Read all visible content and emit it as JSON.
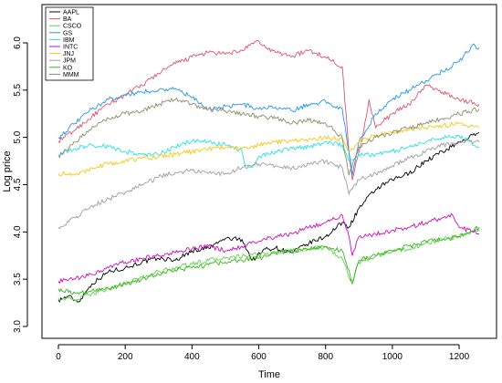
{
  "chart_data": {
    "type": "line",
    "title": "",
    "xlabel": "Time",
    "ylabel": "Log price",
    "xlim": [
      0,
      1260
    ],
    "ylim": [
      3.0,
      6.1
    ],
    "x_ticks": [
      0,
      200,
      400,
      600,
      800,
      1000,
      1200
    ],
    "y_ticks": [
      3.0,
      3.5,
      4.0,
      4.5,
      5.0,
      5.5,
      6.0
    ],
    "grid": false,
    "legend_position": "top-left",
    "series": [
      {
        "name": "AAPL",
        "color": "#000000",
        "x": [
          0,
          30,
          60,
          100,
          150,
          200,
          250,
          300,
          350,
          400,
          450,
          500,
          550,
          580,
          620,
          650,
          700,
          750,
          800,
          850,
          870,
          900,
          950,
          1000,
          1050,
          1100,
          1150,
          1200,
          1260
        ],
        "y": [
          3.28,
          3.32,
          3.26,
          3.45,
          3.58,
          3.62,
          3.68,
          3.72,
          3.7,
          3.8,
          3.83,
          3.93,
          3.92,
          3.7,
          3.82,
          3.83,
          3.78,
          3.88,
          3.95,
          4.1,
          4.05,
          4.25,
          4.45,
          4.55,
          4.62,
          4.75,
          4.85,
          4.95,
          5.05
        ]
      },
      {
        "name": "BA",
        "color": "#df536b",
        "x": [
          0,
          50,
          100,
          150,
          200,
          250,
          300,
          350,
          400,
          450,
          500,
          550,
          600,
          620,
          650,
          700,
          750,
          800,
          850,
          870,
          880,
          895,
          910,
          930,
          950,
          1000,
          1050,
          1100,
          1150,
          1200,
          1260
        ],
        "y": [
          4.96,
          5.08,
          5.22,
          5.35,
          5.45,
          5.55,
          5.68,
          5.78,
          5.85,
          5.9,
          5.88,
          5.92,
          6.02,
          5.95,
          5.9,
          5.86,
          5.92,
          5.85,
          5.75,
          4.85,
          4.55,
          4.78,
          5.0,
          5.4,
          5.1,
          5.25,
          5.35,
          5.55,
          5.48,
          5.4,
          5.35
        ]
      },
      {
        "name": "CSCO",
        "color": "#61d04f",
        "x": [
          0,
          50,
          100,
          150,
          200,
          250,
          300,
          350,
          400,
          450,
          500,
          550,
          600,
          650,
          700,
          750,
          800,
          850,
          870,
          880,
          900,
          950,
          1000,
          1050,
          1100,
          1150,
          1200,
          1260
        ],
        "y": [
          3.3,
          3.28,
          3.35,
          3.4,
          3.45,
          3.52,
          3.58,
          3.62,
          3.66,
          3.7,
          3.72,
          3.74,
          3.76,
          3.78,
          3.8,
          3.82,
          3.84,
          3.72,
          3.52,
          3.48,
          3.68,
          3.74,
          3.8,
          3.82,
          3.88,
          3.92,
          3.95,
          4.02
        ]
      },
      {
        "name": "GS",
        "color": "#2297e6",
        "x": [
          0,
          50,
          100,
          150,
          200,
          250,
          300,
          350,
          400,
          450,
          500,
          550,
          600,
          650,
          700,
          750,
          800,
          850,
          870,
          880,
          900,
          950,
          1000,
          1050,
          1100,
          1150,
          1200,
          1240,
          1260
        ],
        "y": [
          5.0,
          5.15,
          5.3,
          5.4,
          5.45,
          5.48,
          5.5,
          5.52,
          5.42,
          5.3,
          5.33,
          5.35,
          5.3,
          5.32,
          5.28,
          5.35,
          5.38,
          5.3,
          4.85,
          4.6,
          4.95,
          5.25,
          5.4,
          5.5,
          5.6,
          5.7,
          5.8,
          5.98,
          5.95
        ]
      },
      {
        "name": "IBM",
        "color": "#28e2e5",
        "x": [
          0,
          50,
          100,
          150,
          200,
          250,
          300,
          350,
          400,
          450,
          500,
          550,
          560,
          580,
          600,
          650,
          700,
          750,
          800,
          850,
          870,
          900,
          950,
          1000,
          1050,
          1100,
          1150,
          1200,
          1260
        ],
        "y": [
          4.82,
          4.88,
          4.92,
          4.9,
          4.85,
          4.82,
          4.82,
          4.9,
          4.96,
          4.95,
          4.92,
          4.85,
          4.7,
          4.68,
          4.8,
          4.85,
          4.88,
          4.9,
          4.95,
          4.92,
          4.75,
          4.82,
          4.82,
          4.85,
          4.9,
          4.95,
          5.0,
          5.02,
          4.9
        ]
      },
      {
        "name": "INTC",
        "color": "#cd0bbc",
        "x": [
          0,
          50,
          100,
          150,
          200,
          250,
          300,
          350,
          400,
          450,
          500,
          550,
          600,
          650,
          700,
          750,
          800,
          850,
          870,
          880,
          900,
          950,
          1000,
          1050,
          1100,
          1150,
          1180,
          1200,
          1260
        ],
        "y": [
          3.48,
          3.5,
          3.55,
          3.62,
          3.68,
          3.72,
          3.75,
          3.78,
          3.82,
          3.85,
          3.8,
          3.85,
          3.9,
          3.95,
          3.98,
          4.05,
          4.1,
          4.18,
          3.95,
          3.75,
          3.95,
          3.98,
          4.02,
          4.05,
          4.1,
          4.15,
          4.18,
          4.05,
          3.98
        ]
      },
      {
        "name": "JNJ",
        "color": "#f5c710",
        "x": [
          0,
          50,
          100,
          150,
          200,
          250,
          300,
          350,
          400,
          450,
          500,
          550,
          600,
          650,
          700,
          750,
          800,
          850,
          870,
          900,
          950,
          1000,
          1050,
          1100,
          1150,
          1200,
          1260
        ],
        "y": [
          4.62,
          4.6,
          4.68,
          4.72,
          4.75,
          4.78,
          4.8,
          4.82,
          4.85,
          4.88,
          4.9,
          4.88,
          4.92,
          4.95,
          4.97,
          4.98,
          5.0,
          4.98,
          4.85,
          4.95,
          5.02,
          5.05,
          5.08,
          5.1,
          5.12,
          5.15,
          5.1
        ]
      },
      {
        "name": "JPM",
        "color": "#9e9e9e",
        "x": [
          0,
          50,
          100,
          150,
          200,
          250,
          300,
          350,
          400,
          450,
          500,
          550,
          600,
          650,
          700,
          750,
          800,
          850,
          870,
          880,
          900,
          950,
          1000,
          1050,
          1100,
          1150,
          1200,
          1260
        ],
        "y": [
          4.05,
          4.15,
          4.28,
          4.35,
          4.42,
          4.5,
          4.58,
          4.63,
          4.65,
          4.62,
          4.62,
          4.68,
          4.72,
          4.7,
          4.68,
          4.72,
          4.75,
          4.68,
          4.4,
          4.45,
          4.55,
          4.62,
          4.7,
          4.78,
          4.85,
          4.92,
          4.95,
          4.95
        ]
      },
      {
        "name": "KO",
        "color": "#3cb51f",
        "x": [
          0,
          50,
          100,
          150,
          200,
          250,
          300,
          350,
          400,
          450,
          500,
          550,
          600,
          650,
          700,
          750,
          800,
          850,
          870,
          880,
          900,
          950,
          1000,
          1050,
          1100,
          1150,
          1200,
          1260
        ],
        "y": [
          3.4,
          3.35,
          3.38,
          3.4,
          3.45,
          3.5,
          3.55,
          3.6,
          3.62,
          3.65,
          3.68,
          3.7,
          3.72,
          3.78,
          3.8,
          3.82,
          3.85,
          3.8,
          3.6,
          3.45,
          3.7,
          3.75,
          3.8,
          3.85,
          3.9,
          3.92,
          3.95,
          4.05
        ]
      },
      {
        "name": "MMM",
        "color": "#8c8c6a",
        "x": [
          0,
          50,
          100,
          150,
          200,
          250,
          300,
          350,
          400,
          450,
          500,
          550,
          600,
          650,
          700,
          750,
          800,
          850,
          870,
          880,
          900,
          950,
          1000,
          1050,
          1100,
          1150,
          1200,
          1260
        ],
        "y": [
          4.8,
          4.95,
          5.1,
          5.2,
          5.25,
          5.28,
          5.35,
          5.4,
          5.35,
          5.3,
          5.28,
          5.25,
          5.22,
          5.2,
          5.15,
          5.18,
          5.15,
          5.0,
          4.6,
          4.7,
          4.9,
          5.0,
          5.05,
          5.1,
          5.15,
          5.2,
          5.25,
          5.3
        ]
      }
    ]
  }
}
